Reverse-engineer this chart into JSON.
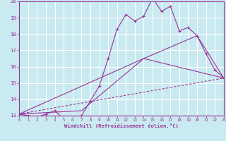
{
  "background_color": "#c8eaf0",
  "grid_color": "#ffffff",
  "line_color": "#993399",
  "xlabel": "Windchill (Refroidissement éolien,°C)",
  "xlim": [
    0,
    23
  ],
  "ylim": [
    13,
    20
  ],
  "yticks": [
    13,
    14,
    15,
    16,
    17,
    18,
    19,
    20
  ],
  "xticks": [
    0,
    1,
    2,
    3,
    4,
    5,
    6,
    7,
    8,
    9,
    10,
    11,
    12,
    13,
    14,
    15,
    16,
    17,
    18,
    19,
    20,
    21,
    22,
    23
  ],
  "series": [
    {
      "x": [
        0,
        1,
        2,
        3,
        4,
        5,
        6,
        7,
        8,
        9,
        10,
        11,
        12,
        13,
        14,
        15,
        16,
        17,
        18,
        19,
        20,
        21,
        22,
        23
      ],
      "y": [
        13.1,
        13.0,
        12.9,
        13.1,
        13.3,
        12.8,
        12.9,
        13.0,
        13.9,
        14.8,
        16.5,
        18.3,
        19.2,
        18.8,
        19.1,
        20.2,
        19.4,
        19.7,
        18.2,
        18.4,
        17.9,
        16.8,
        15.8,
        15.3
      ],
      "markers": true
    },
    {
      "x": [
        0,
        23
      ],
      "y": [
        13.1,
        15.3
      ],
      "markers": false,
      "dashed": true
    },
    {
      "x": [
        0,
        14,
        23
      ],
      "y": [
        13.1,
        16.5,
        15.3
      ],
      "markers": false,
      "dashed": false
    },
    {
      "x": [
        0,
        7,
        14,
        20,
        23
      ],
      "y": [
        13.1,
        13.3,
        16.5,
        17.9,
        15.3
      ],
      "markers": false,
      "dashed": false
    }
  ]
}
